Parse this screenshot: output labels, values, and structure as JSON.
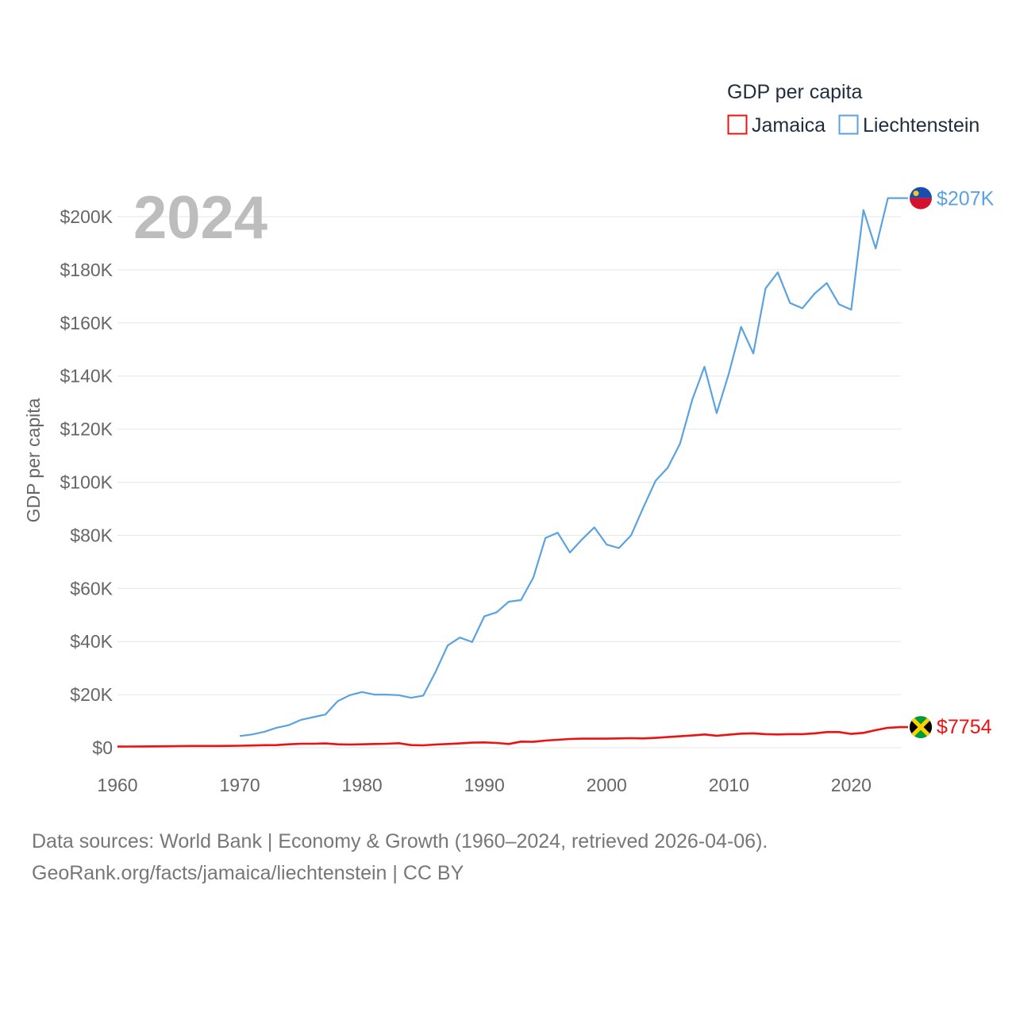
{
  "chart_data": {
    "type": "line",
    "title": "GDP per capita",
    "ylabel": "GDP per capita",
    "xlabel": "",
    "year_label": "2024",
    "xlim": [
      1960,
      2024
    ],
    "ylim": [
      0,
      210000
    ],
    "x_ticks": [
      1960,
      1970,
      1980,
      1990,
      2000,
      2010,
      2020
    ],
    "x_tick_labels": [
      "1960",
      "1970",
      "1980",
      "1990",
      "2000",
      "2010",
      "2020"
    ],
    "y_ticks": [
      0,
      20000,
      40000,
      60000,
      80000,
      100000,
      120000,
      140000,
      160000,
      180000,
      200000
    ],
    "y_tick_labels": [
      "$0",
      "$20K",
      "$40K",
      "$60K",
      "$80K",
      "$100K",
      "$120K",
      "$140K",
      "$160K",
      "$180K",
      "$200K"
    ],
    "legend_title": "GDP per capita",
    "series": [
      {
        "name": "Jamaica",
        "color": "#ee1111",
        "end_label": "$7754",
        "flag": "jamaica-flag",
        "x": [
          1960,
          1961,
          1962,
          1963,
          1964,
          1965,
          1966,
          1967,
          1968,
          1969,
          1970,
          1971,
          1972,
          1973,
          1974,
          1975,
          1976,
          1977,
          1978,
          1979,
          1980,
          1981,
          1982,
          1983,
          1984,
          1985,
          1986,
          1987,
          1988,
          1989,
          1990,
          1991,
          1992,
          1993,
          1994,
          1995,
          1996,
          1997,
          1998,
          1999,
          2000,
          2001,
          2002,
          2003,
          2004,
          2005,
          2006,
          2007,
          2008,
          2009,
          2010,
          2011,
          2012,
          2013,
          2014,
          2015,
          2016,
          2017,
          2018,
          2019,
          2020,
          2021,
          2022,
          2023,
          2024
        ],
        "values": [
          430,
          450,
          470,
          500,
          550,
          600,
          650,
          650,
          650,
          700,
          750,
          850,
          950,
          1000,
          1300,
          1500,
          1500,
          1600,
          1300,
          1200,
          1300,
          1400,
          1500,
          1700,
          1000,
          900,
          1200,
          1400,
          1600,
          1900,
          2000,
          1800,
          1400,
          2300,
          2200,
          2700,
          3000,
          3300,
          3400,
          3400,
          3400,
          3500,
          3600,
          3500,
          3700,
          4000,
          4300,
          4600,
          5000,
          4500,
          4900,
          5300,
          5400,
          5100,
          5000,
          5100,
          5100,
          5400,
          5900,
          5900,
          5200,
          5600,
          6600,
          7500,
          7754
        ]
      },
      {
        "name": "Liechtenstein",
        "color": "#5aa2e0",
        "end_label": "$207K",
        "flag": "liechtenstein-flag",
        "x": [
          1970,
          1971,
          1972,
          1973,
          1974,
          1975,
          1976,
          1977,
          1978,
          1979,
          1980,
          1981,
          1982,
          1983,
          1984,
          1985,
          1986,
          1987,
          1988,
          1989,
          1990,
          1991,
          1992,
          1993,
          1994,
          1995,
          1996,
          1997,
          1998,
          1999,
          2000,
          2001,
          2002,
          2003,
          2004,
          2005,
          2006,
          2007,
          2008,
          2009,
          2010,
          2011,
          2012,
          2013,
          2014,
          2015,
          2016,
          2017,
          2018,
          2019,
          2020,
          2021,
          2022,
          2023,
          2024
        ],
        "values": [
          4400,
          5000,
          6000,
          7500,
          8500,
          10500,
          11500,
          12500,
          17500,
          19800,
          21000,
          20000,
          20000,
          19800,
          18800,
          19600,
          28500,
          38500,
          41500,
          39800,
          49500,
          51000,
          55000,
          55600,
          64000,
          79000,
          81000,
          73500,
          78500,
          83000,
          76500,
          75200,
          80000,
          90500,
          100500,
          105500,
          114500,
          131000,
          143500,
          126000,
          141000,
          158500,
          148500,
          173000,
          179000,
          167500,
          165500,
          171000,
          175000,
          167000,
          165000,
          202500,
          188000,
          207000,
          207000
        ]
      }
    ]
  },
  "footer": {
    "line1": "Data sources: World Bank | Economy & Growth (1960–2024, retrieved 2026-04-06).",
    "line2": "GeoRank.org/facts/jamaica/liechtenstein | CC BY"
  }
}
